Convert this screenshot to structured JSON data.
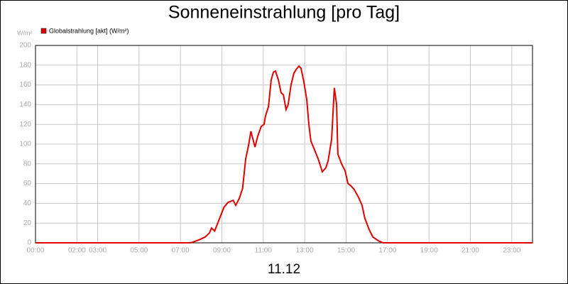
{
  "chart_data": {
    "type": "line",
    "title": "Sonneneinstrahlung [pro Tag]",
    "y_label": "W/m²",
    "x_label": "11.12",
    "x": [
      0,
      7.5,
      7.9,
      8.2,
      8.4,
      8.5,
      8.65,
      8.8,
      9.1,
      9.3,
      9.55,
      9.67,
      9.84,
      10.0,
      10.15,
      10.3,
      10.4,
      10.6,
      10.73,
      10.9,
      11.04,
      11.1,
      11.25,
      11.38,
      11.49,
      11.59,
      11.73,
      11.86,
      11.97,
      12.1,
      12.2,
      12.34,
      12.48,
      12.6,
      12.72,
      12.82,
      12.96,
      13.1,
      13.2,
      13.3,
      13.44,
      13.65,
      13.85,
      14.02,
      14.13,
      14.3,
      14.43,
      14.54,
      14.6,
      14.78,
      14.95,
      15.09,
      15.22,
      15.39,
      15.6,
      15.77,
      15.9,
      16.1,
      16.29,
      16.56,
      16.8,
      24
    ],
    "series": [
      {
        "name": "Globalstrahlung [akt] (W/m²)",
        "color": "#e00000",
        "values": [
          0,
          0,
          3,
          6,
          10,
          15,
          12,
          20,
          36,
          41,
          43,
          38,
          45,
          55,
          85,
          100,
          113,
          97,
          108,
          118,
          120,
          128,
          138,
          165,
          173,
          174,
          165,
          152,
          150,
          135,
          140,
          160,
          172,
          176,
          179,
          177,
          163,
          145,
          120,
          103,
          96,
          85,
          72,
          76,
          83,
          105,
          157,
          140,
          90,
          80,
          73,
          60,
          58,
          54,
          46,
          38,
          25,
          14,
          6,
          2,
          0,
          0
        ]
      }
    ],
    "xlim": [
      0,
      24
    ],
    "xticks": [
      {
        "value": 0,
        "label": "00:00"
      },
      {
        "value": 2,
        "label": "02:00"
      },
      {
        "value": 3,
        "label": "03:00"
      },
      {
        "value": 5,
        "label": "05:00"
      },
      {
        "value": 7,
        "label": "07:00"
      },
      {
        "value": 9,
        "label": "09:00"
      },
      {
        "value": 11,
        "label": "11:00"
      },
      {
        "value": 13,
        "label": "13:00"
      },
      {
        "value": 15,
        "label": "15:00"
      },
      {
        "value": 17,
        "label": "17:00"
      },
      {
        "value": 19,
        "label": "19:00"
      },
      {
        "value": 21,
        "label": "21:00"
      },
      {
        "value": 23,
        "label": "23:00"
      }
    ],
    "ylim": [
      0,
      200
    ],
    "yticks": [
      0,
      20,
      40,
      60,
      80,
      100,
      120,
      140,
      160,
      180,
      200
    ],
    "grid": true
  }
}
